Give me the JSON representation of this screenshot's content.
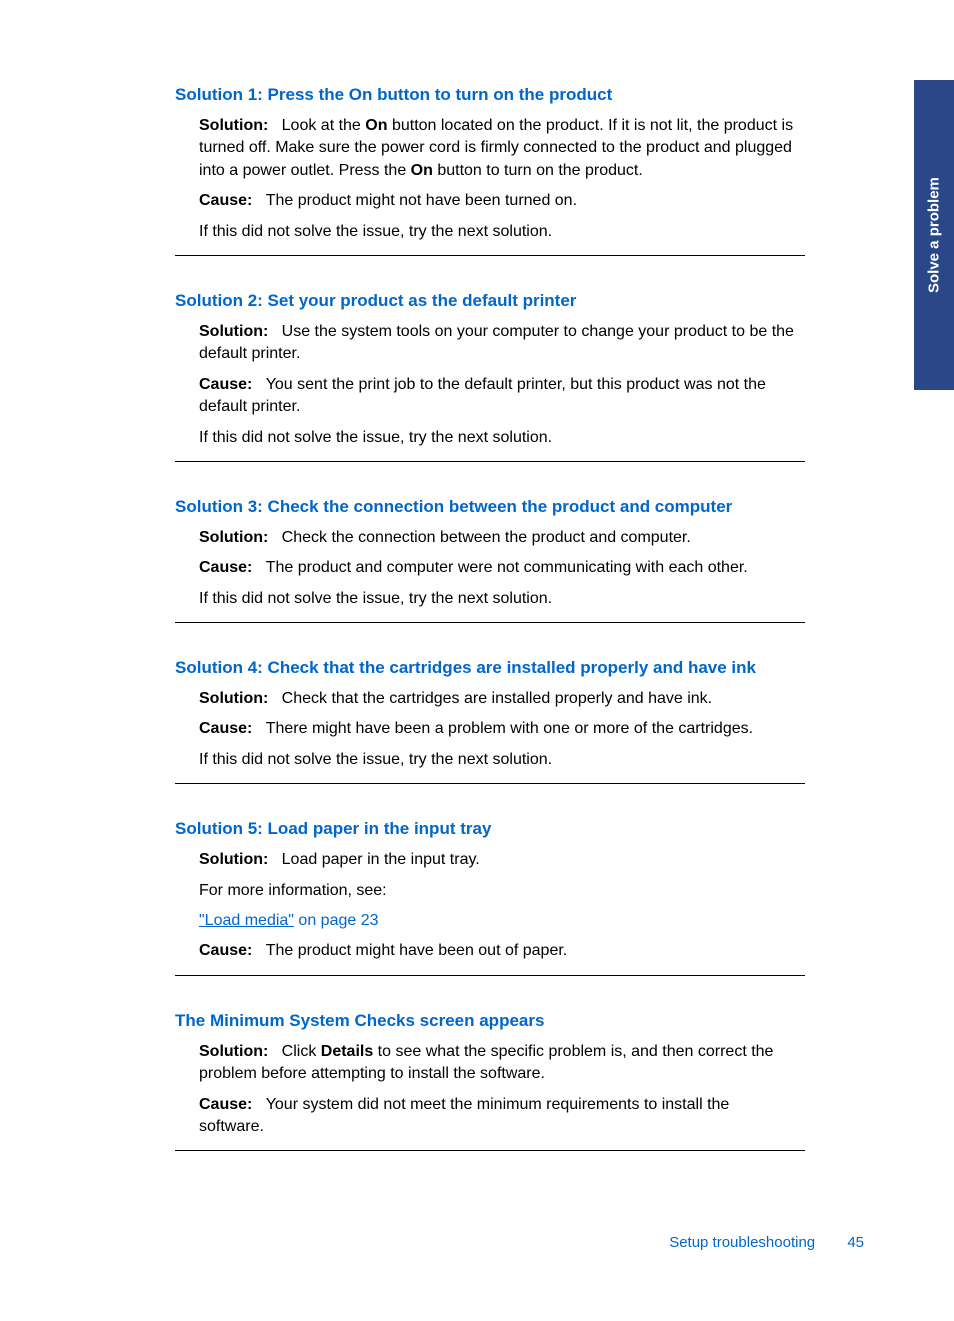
{
  "side_tab_label": "Solve a problem",
  "sections": [
    {
      "heading": "Solution 1: Press the On button to turn on the product",
      "solution_label": "Solution:",
      "solution_pre": "Look at the ",
      "solution_bold1": "On",
      "solution_mid": " button located on the product. If it is not lit, the product is turned off. Make sure the power cord is firmly connected to the product and plugged into a power outlet. Press the ",
      "solution_bold2": "On",
      "solution_post": " button to turn on the product.",
      "cause_label": "Cause:",
      "cause_text": "The product might not have been turned on.",
      "next_text": "If this did not solve the issue, try the next solution."
    },
    {
      "heading": "Solution 2: Set your product as the default printer",
      "solution_label": "Solution:",
      "solution_text": "Use the system tools on your computer to change your product to be the default printer.",
      "cause_label": "Cause:",
      "cause_text": "You sent the print job to the default printer, but this product was not the default printer.",
      "next_text": "If this did not solve the issue, try the next solution."
    },
    {
      "heading": "Solution 3: Check the connection between the product and computer",
      "solution_label": "Solution:",
      "solution_text": "Check the connection between the product and computer.",
      "cause_label": "Cause:",
      "cause_text": "The product and computer were not communicating with each other.",
      "next_text": "If this did not solve the issue, try the next solution."
    },
    {
      "heading": "Solution 4: Check that the cartridges are installed properly and have ink",
      "solution_label": "Solution:",
      "solution_text": "Check that the cartridges are installed properly and have ink.",
      "cause_label": "Cause:",
      "cause_text": "There might have been a problem with one or more of the cartridges.",
      "next_text": "If this did not solve the issue, try the next solution."
    },
    {
      "heading": "Solution 5: Load paper in the input tray",
      "solution_label": "Solution:",
      "solution_text": "Load paper in the input tray.",
      "info_text": "For more information, see:",
      "link_text": "\"Load media\"",
      "link_suffix": " on page 23",
      "cause_label": "Cause:",
      "cause_text": "The product might have been out of paper."
    },
    {
      "heading": "The Minimum System Checks screen appears",
      "solution_label": "Solution:",
      "solution_pre": "Click ",
      "solution_bold1": "Details",
      "solution_post": " to see what the specific problem is, and then correct the problem before attempting to install the software.",
      "cause_label": "Cause:",
      "cause_text": "Your system did not meet the minimum requirements to install the software."
    }
  ],
  "footer": {
    "text": "Setup troubleshooting",
    "page": "45"
  }
}
